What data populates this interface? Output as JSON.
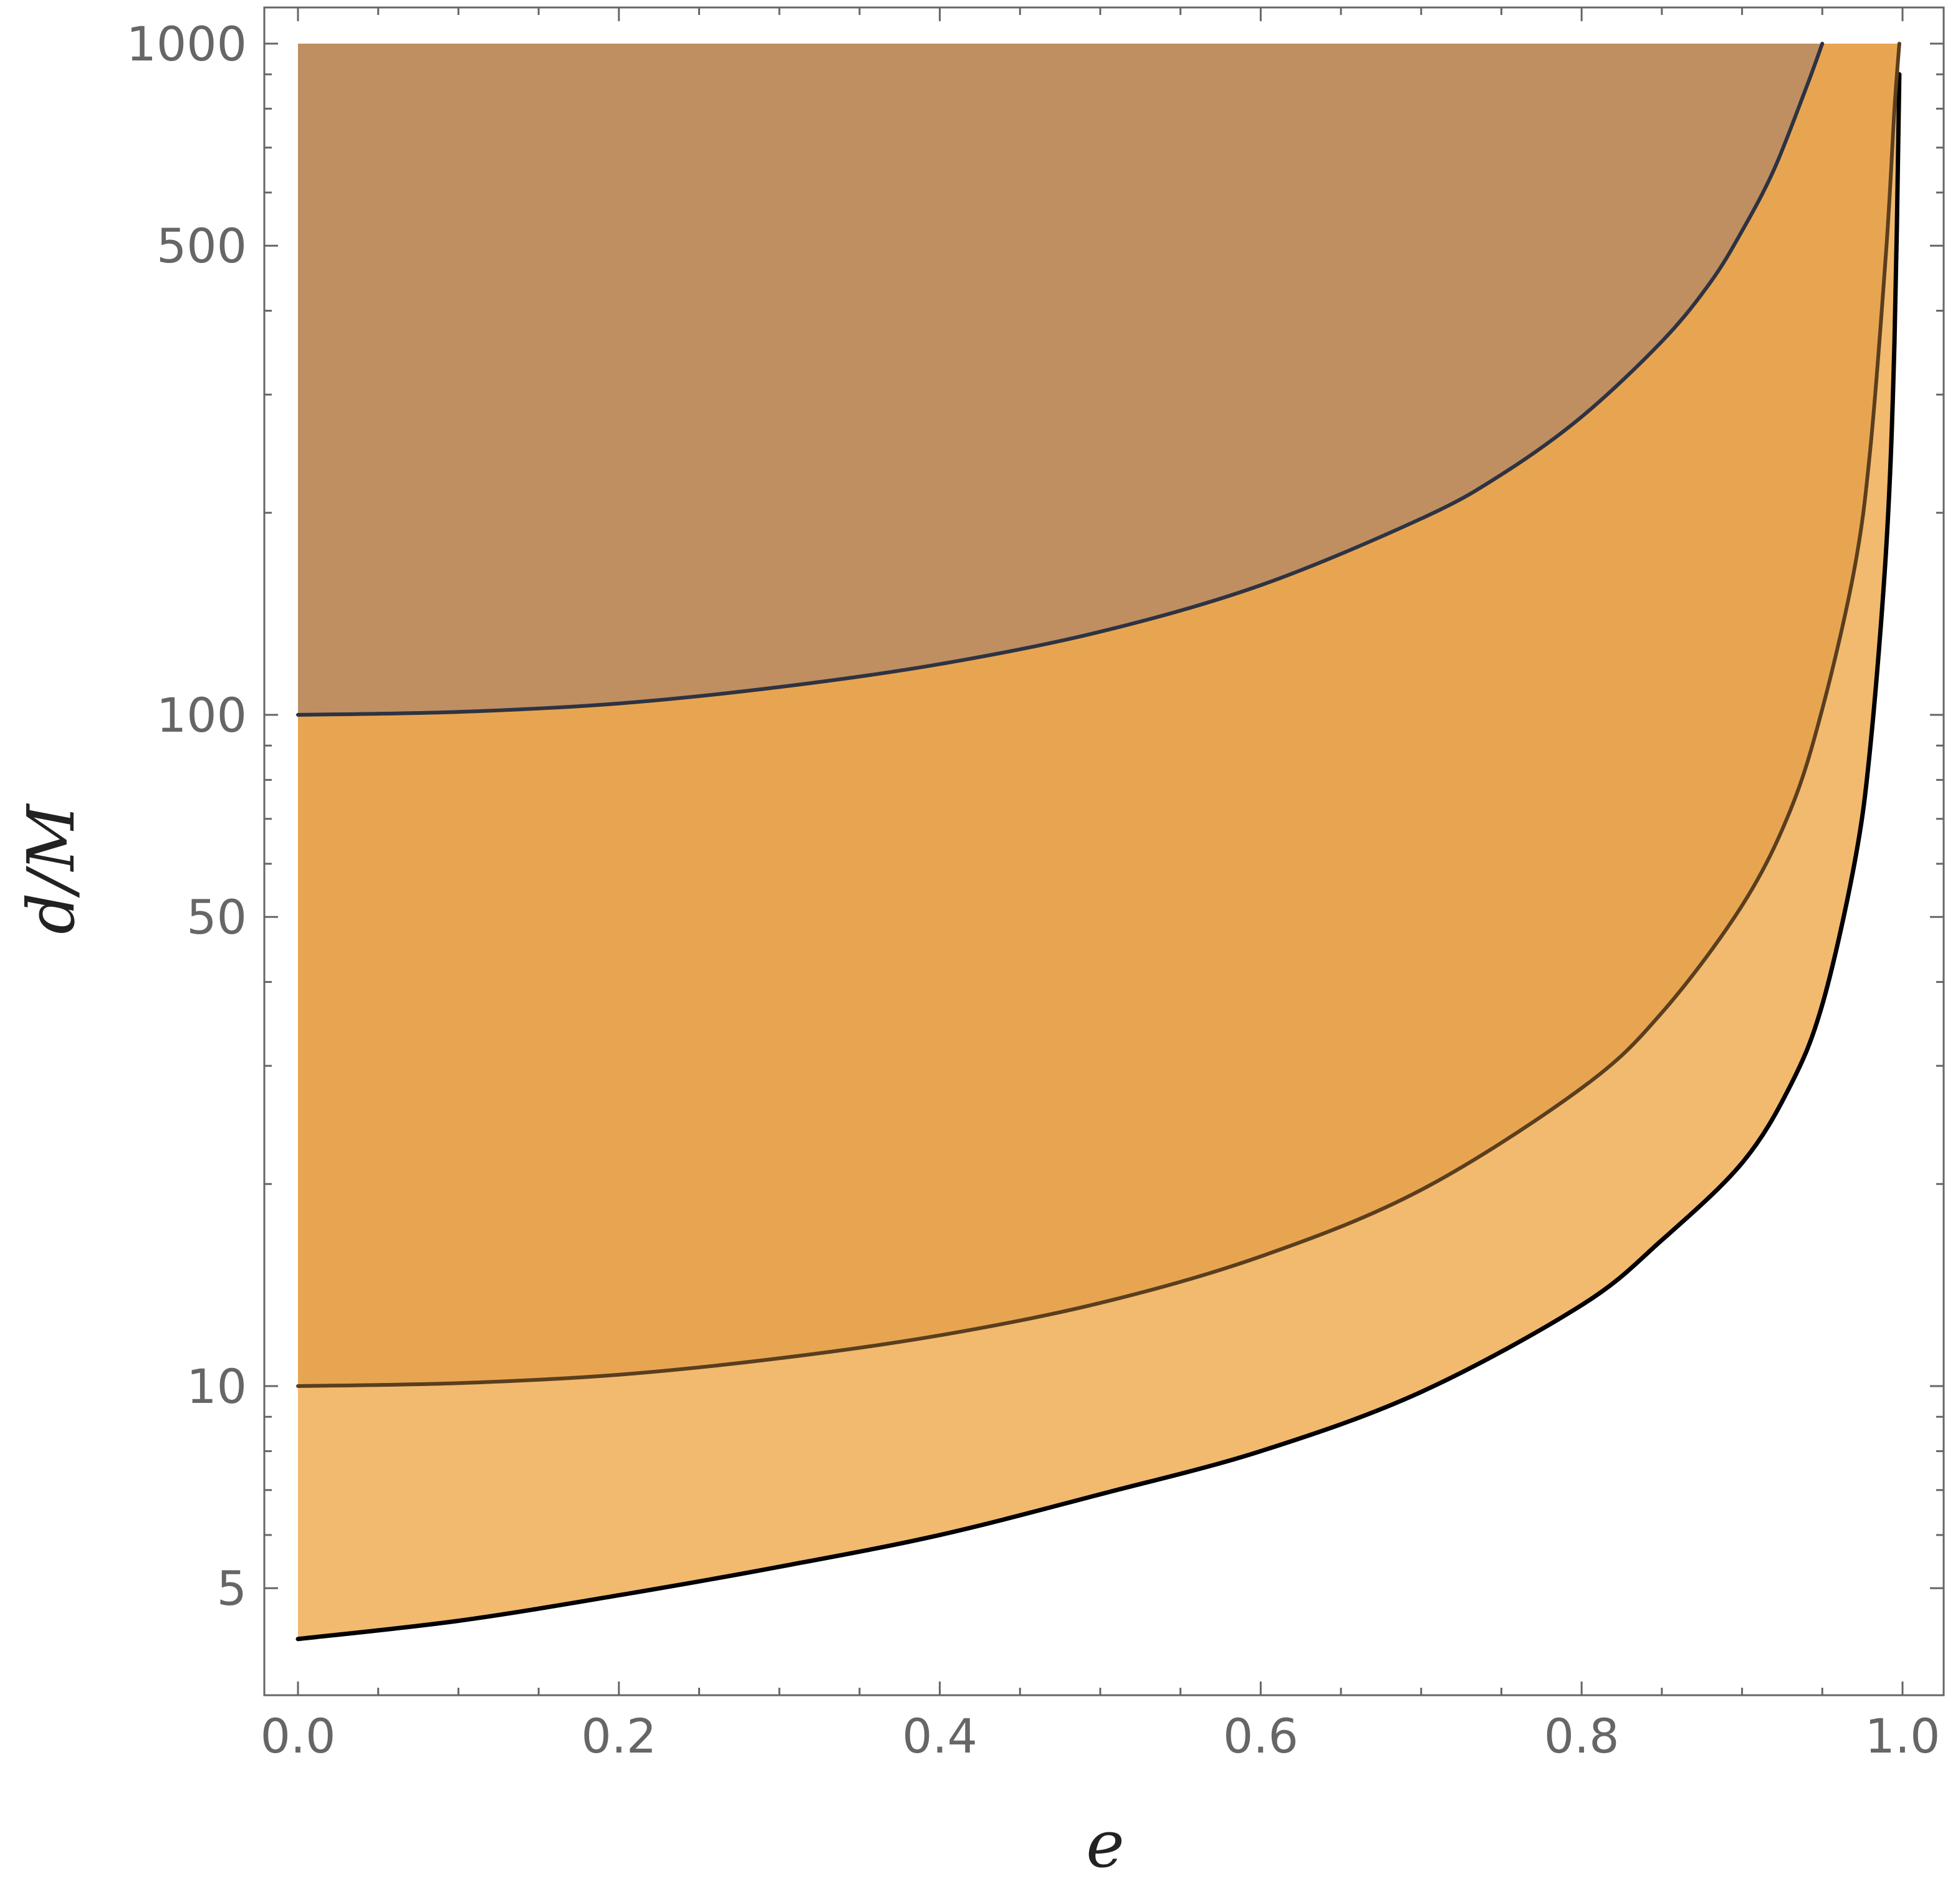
{
  "chart_data": {
    "type": "area",
    "title": "",
    "xlabel": "e",
    "ylabel": "d/M",
    "xlim": [
      0,
      1
    ],
    "ylim": [
      4.15,
      1000
    ],
    "yscale": "log",
    "grid": false,
    "legend": "none",
    "x_ticks": [
      {
        "value": 0.0,
        "label": "0.0"
      },
      {
        "value": 0.2,
        "label": "0.2"
      },
      {
        "value": 0.4,
        "label": "0.4"
      },
      {
        "value": 0.6,
        "label": "0.6"
      },
      {
        "value": 0.8,
        "label": "0.8"
      },
      {
        "value": 1.0,
        "label": "1.0"
      }
    ],
    "y_ticks": [
      {
        "value": 5,
        "label": "5"
      },
      {
        "value": 10,
        "label": "10"
      },
      {
        "value": 50,
        "label": "50"
      },
      {
        "value": 100,
        "label": "100"
      },
      {
        "value": 500,
        "label": "500"
      },
      {
        "value": 1000,
        "label": "1000"
      }
    ],
    "series": [
      {
        "fill": "#F2BA6E",
        "line_color": "#000000",
        "x": [
          0,
          0.1,
          0.2,
          0.3,
          0.4,
          0.5,
          0.6,
          0.7,
          0.8,
          0.85,
          0.9,
          0.93,
          0.95,
          0.97,
          0.98,
          0.99,
          0.995,
          0.998
        ],
        "y": [
          4.2,
          4.47,
          4.88,
          5.38,
          6.0,
          6.9,
          8.0,
          9.8,
          13.2,
          16.5,
          21.5,
          28,
          37,
          60,
          90,
          180,
          360,
          900
        ]
      },
      {
        "fill": "#E8A551",
        "line_color": "#5A3E1E",
        "x": [
          0,
          0.1,
          0.2,
          0.3,
          0.4,
          0.5,
          0.6,
          0.7,
          0.8,
          0.85,
          0.9,
          0.93,
          0.95,
          0.97,
          0.98,
          0.99,
          0.995,
          0.998
        ],
        "y": [
          10,
          10.1,
          10.4,
          11.0,
          11.9,
          13.3,
          15.6,
          19.6,
          27.8,
          36,
          52,
          72,
          102,
          165,
          250,
          500,
          800,
          1000
        ]
      },
      {
        "fill": "#BF8F62",
        "line_color": "#2E3342",
        "x": [
          0,
          0.1,
          0.2,
          0.3,
          0.4,
          0.5,
          0.6,
          0.7,
          0.75,
          0.8,
          0.85,
          0.88,
          0.9,
          0.92,
          0.94,
          0.95
        ],
        "y": [
          100,
          101,
          104,
          110,
          119,
          133,
          156,
          196,
          228,
          278,
          360,
          440,
          526,
          650,
          860,
          1000
        ]
      }
    ]
  }
}
